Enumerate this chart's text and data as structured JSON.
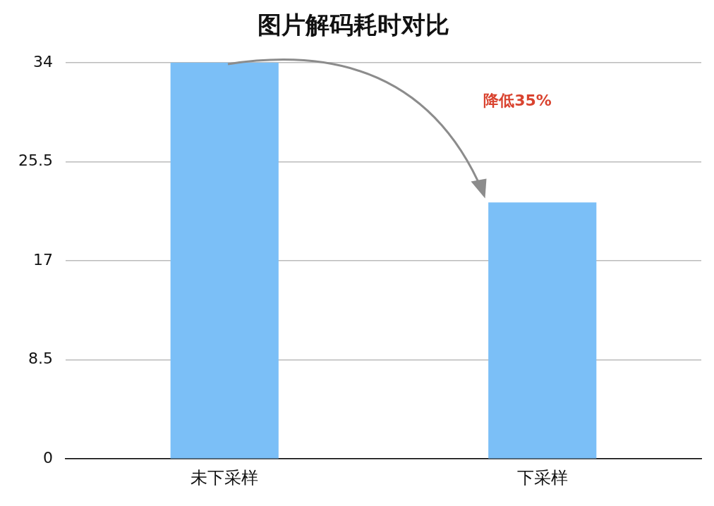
{
  "chart_data": {
    "type": "bar",
    "title": "图片解码耗时对比",
    "categories": [
      "未下采样",
      "下采样"
    ],
    "values": [
      34,
      22
    ],
    "color": "#7bbff7",
    "ylim": [
      0,
      34
    ],
    "yticks": [
      0,
      8.5,
      17,
      25.5,
      34
    ],
    "grid": "y",
    "annotations": [
      "降低35%"
    ]
  }
}
